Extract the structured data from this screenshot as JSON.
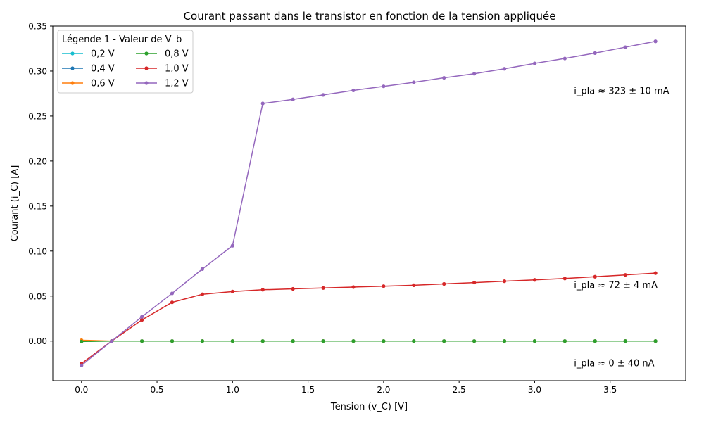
{
  "chart_data": {
    "type": "line",
    "title": "Courant passant dans le transistor en fonction de la tension appliquée",
    "xlabel": "Tension (v_C) [V]",
    "ylabel": "Courant (i_C) [A]",
    "xlim": [
      -0.19,
      4.0
    ],
    "ylim": [
      -0.044,
      0.35
    ],
    "xticks": [
      0.0,
      0.5,
      1.0,
      1.5,
      2.0,
      2.5,
      3.0,
      3.5
    ],
    "xtick_labels": [
      "0.0",
      "0.5",
      "1.0",
      "1.5",
      "2.0",
      "2.5",
      "3.0",
      "3.5"
    ],
    "yticks": [
      0.0,
      0.05,
      0.1,
      0.15,
      0.2,
      0.25,
      0.3,
      0.35
    ],
    "ytick_labels": [
      "0.00",
      "0.05",
      "0.10",
      "0.15",
      "0.20",
      "0.25",
      "0.30",
      "0.35"
    ],
    "grid": false,
    "legend": {
      "title": "Légende 1 - Valeur de V_b",
      "position": "top-left",
      "columns": 2
    },
    "x": [
      0.0,
      0.2,
      0.4,
      0.6,
      0.8,
      1.0,
      1.2,
      1.4,
      1.6,
      1.8,
      2.0,
      2.2,
      2.4,
      2.6,
      2.8,
      3.0,
      3.2,
      3.4,
      3.6,
      3.8
    ],
    "series": [
      {
        "name": "0,2 V",
        "color": "#17becf",
        "values": [
          0.0,
          0.0,
          0.0,
          0.0,
          0.0,
          0.0,
          0.0,
          0.0,
          0.0,
          0.0,
          0.0,
          0.0,
          0.0,
          0.0,
          0.0,
          0.0,
          0.0,
          0.0,
          0.0,
          0.0
        ]
      },
      {
        "name": "0,4 V",
        "color": "#1f77b4",
        "values": [
          0.0,
          0.0,
          0.0,
          0.0,
          0.0,
          0.0,
          0.0,
          0.0,
          0.0,
          0.0,
          0.0,
          0.0,
          0.0,
          0.0,
          0.0,
          0.0,
          0.0,
          0.0,
          0.0,
          0.0
        ]
      },
      {
        "name": "0,6 V",
        "color": "#ff7f0e",
        "values": [
          0.001,
          0.0,
          0.0,
          0.0,
          0.0,
          0.0,
          0.0,
          0.0,
          0.0,
          0.0,
          0.0,
          0.0,
          0.0,
          0.0,
          0.0,
          0.0,
          0.0,
          0.0,
          0.0,
          0.0
        ]
      },
      {
        "name": "0,8 V",
        "color": "#2ca02c",
        "values": [
          -0.0005,
          0.0,
          0.0,
          0.0,
          0.0,
          0.0,
          0.0,
          0.0,
          0.0,
          0.0,
          0.0,
          0.0,
          0.0,
          0.0,
          0.0,
          0.0,
          0.0,
          0.0,
          0.0,
          0.0
        ]
      },
      {
        "name": "1,0 V",
        "color": "#d62728",
        "values": [
          -0.025,
          0.0,
          0.0235,
          0.043,
          0.052,
          0.055,
          0.057,
          0.058,
          0.059,
          0.06,
          0.061,
          0.062,
          0.0635,
          0.065,
          0.0665,
          0.068,
          0.0695,
          0.0715,
          0.0735,
          0.0755
        ]
      },
      {
        "name": "1,2 V",
        "color": "#9467bd",
        "values": [
          -0.027,
          0.0,
          0.027,
          0.053,
          0.08,
          0.106,
          0.264,
          0.2685,
          0.2735,
          0.2785,
          0.283,
          0.2875,
          0.2925,
          0.297,
          0.3025,
          0.3085,
          0.314,
          0.32,
          0.3265,
          0.333
        ]
      }
    ],
    "annotations": [
      {
        "text": "i_pla ≈ 323 ± 10 mA",
        "x": 3.26,
        "y": 0.278
      },
      {
        "text": "i_pla ≈ 72 ± 4 mA",
        "x": 3.26,
        "y": 0.0625
      },
      {
        "text": "i_pla ≈ 0 ± 40 nA",
        "x": 3.26,
        "y": -0.0245
      }
    ]
  }
}
